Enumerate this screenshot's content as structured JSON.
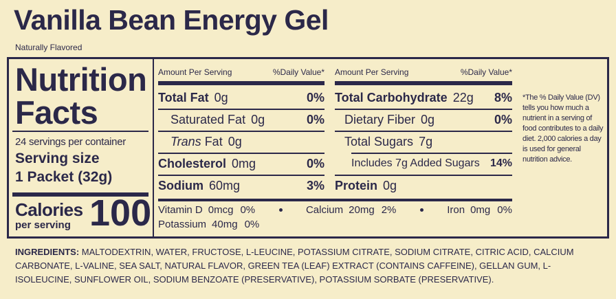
{
  "title": "Vanilla Bean Energy Gel",
  "subtitle": "Naturally Flavored",
  "facts": {
    "heading": [
      "Nutrition",
      "Facts"
    ],
    "servings": "24 servings per container",
    "serving_size_label": "Serving size",
    "serving_size": "1 Packet (32g)",
    "calories_label": "Calories",
    "calories_sub": "per serving",
    "calories": "100"
  },
  "columns": [
    {
      "header_amount": "Amount Per Serving",
      "header_dv": "%Daily Value*",
      "rows": [
        {
          "name": "Total Fat",
          "amount": "0g",
          "dv": "0%"
        },
        {
          "name": "Saturated Fat",
          "amount": "0g",
          "dv": "0%"
        },
        {
          "name_italic": "Trans",
          "name": "Fat",
          "amount": "0g"
        },
        {
          "name": "Cholesterol",
          "amount": "0mg",
          "dv": "0%"
        },
        {
          "name": "Sodium",
          "amount": "60mg",
          "dv": "3%"
        }
      ]
    },
    {
      "header_amount": "Amount Per Serving",
      "header_dv": "%Daily Value*",
      "rows": [
        {
          "name": "Total Carbohydrate",
          "amount": "22g",
          "dv": "8%"
        },
        {
          "name": "Dietary Fiber",
          "amount": "0g",
          "dv": "0%"
        },
        {
          "name": "Total Sugars",
          "amount": "7g"
        },
        {
          "name": "Includes 7g Added Sugars",
          "dv": "14%"
        },
        {
          "name": "Protein",
          "amount": "0g"
        }
      ]
    }
  ],
  "vitamins": [
    {
      "name": "Vitamin D",
      "amount": "0mcg",
      "dv": "0%"
    },
    {
      "name": "Calcium",
      "amount": "20mg",
      "dv": "2%"
    },
    {
      "name": "Iron",
      "amount": "0mg",
      "dv": "0%"
    },
    {
      "name": "Potassium",
      "amount": "40mg",
      "dv": "0%"
    }
  ],
  "footnote": "*The % Daily Value (DV) tells you how much a nutrient in a serving of food contributes to a daily diet. 2,000 calories a day is used for general nutrition advice.",
  "ingredients": {
    "label": "INGREDIENTS:",
    "text": "MALTODEXTRIN, WATER, FRUCTOSE, L-LEUCINE, POTASSIUM CITRATE, SODIUM CITRATE, CITRIC ACID, CALCIUM CARBONATE, L-VALINE, SEA SALT, NATURAL FLAVOR, GREEN TEA (LEAF) EXTRACT (CONTAINS CAFFEINE), GELLAN GUM, L-ISOLEUCINE, SUNFLOWER OIL, SODIUM BENZOATE (PRESERVATIVE), POTASSIUM SORBATE (PRESERVATIVE)."
  }
}
